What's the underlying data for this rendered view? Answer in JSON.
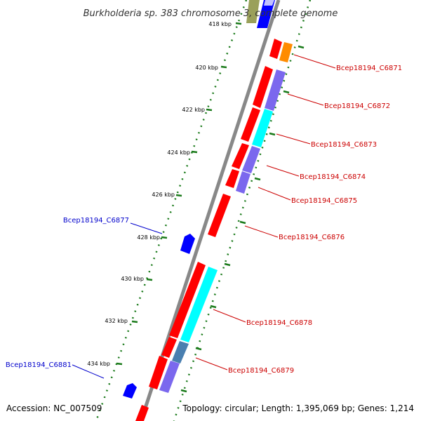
{
  "header": {
    "title": "Burkholderia sp. 383 chromosome 3, complete genome"
  },
  "footer": {
    "accession": "Accession: NC_007509",
    "topology": "Topology: circular; Length: 1,395,069 bp; Genes: 1,214"
  },
  "colors": {
    "forward_gene": "#ff0000",
    "reverse_gene": "#0000ff",
    "orange_feature": "#ff8c00",
    "cyan_feature": "#00ffff",
    "slate_feature": "#7b68ee",
    "tick": "#1a7a1a",
    "backbone": "#888888",
    "forward_label": "#cc0000",
    "reverse_label": "#0000cc"
  },
  "ticks": [
    "418 kbp",
    "420 kbp",
    "422 kbp",
    "424 kbp",
    "426 kbp",
    "428 kbp",
    "430 kbp",
    "432 kbp",
    "434 kbp"
  ],
  "gene_labels": {
    "forward": [
      "Bcep18194_C6871",
      "Bcep18194_C6872",
      "Bcep18194_C6873",
      "Bcep18194_C6874",
      "Bcep18194_C6875",
      "Bcep18194_C6876",
      "Bcep18194_C6878",
      "Bcep18194_C6879"
    ],
    "reverse": [
      "Bcep18194_C6877",
      "Bcep18194_C6881"
    ]
  }
}
